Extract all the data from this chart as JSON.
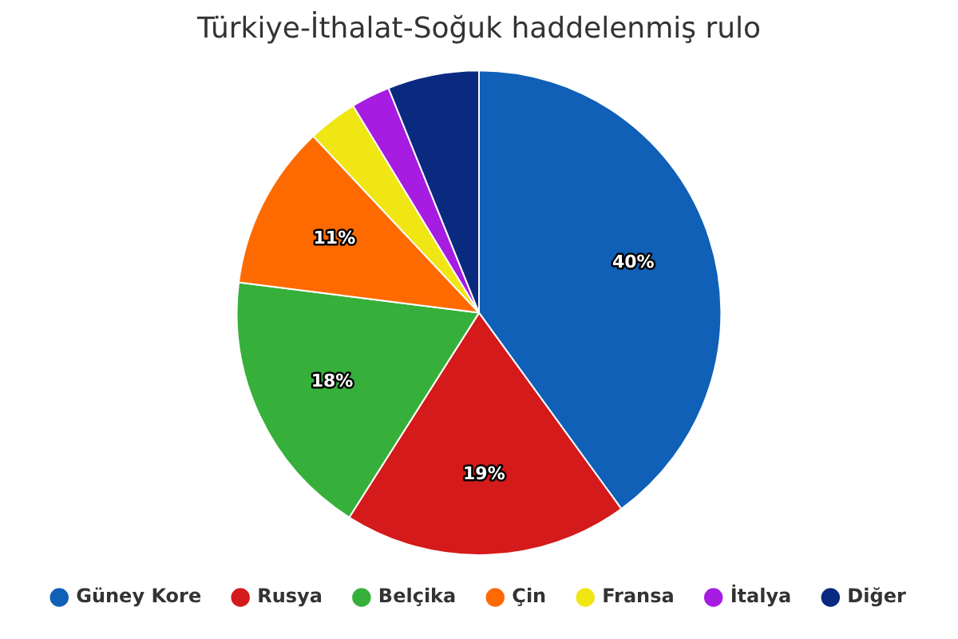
{
  "chart_data": {
    "type": "pie",
    "title": "Türkiye-İthalat-Soğuk haddelenmiş rulo",
    "categories": [
      "Güney Kore",
      "Rusya",
      "Belçika",
      "Çin",
      "Fransa",
      "İtalya",
      "Diğer"
    ],
    "values": [
      40,
      19,
      18,
      11,
      3.3,
      2.6,
      6.1
    ],
    "colors": [
      "#1060b8",
      "#d41a1a",
      "#36b03a",
      "#ff6a00",
      "#f0e614",
      "#a61ce0",
      "#0a2a80"
    ],
    "value_labels": [
      "40%",
      "19%",
      "18%",
      "11%",
      null,
      null,
      null
    ],
    "legend": "bottom"
  }
}
